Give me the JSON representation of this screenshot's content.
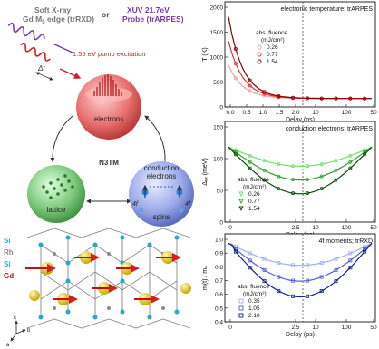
{
  "left": {
    "probe_soft": "Soft X-ray",
    "probe_soft2": "Gd M",
    "probe_soft2_sub": "5",
    "probe_soft3": " edge (trRXD)",
    "or": "or",
    "probe_xuv": "XUV 21.7eV",
    "probe_xuv2": "Probe (trARPES)",
    "delay": "Δt",
    "pump": "1.55 eV pump excitation",
    "model": "N3TM",
    "baths": {
      "electrons": "electrons",
      "lattice": "lattice",
      "conduction1": "conduction",
      "conduction2": "electrons",
      "spins": "spins",
      "f1": "4f",
      "f2": "4f"
    },
    "atoms": {
      "si1": "Si",
      "rh": "Rh",
      "si2": "Si",
      "gd": "Gd"
    },
    "axes": {
      "a": "a",
      "b": "b",
      "c": "c"
    },
    "colors": {
      "electrons": "#e06060",
      "lattice": "#4aa84a",
      "spins": "#4a7ad0",
      "pump": "#d02020",
      "probe": "#7a3aa8"
    }
  },
  "panels": [
    {
      "id": "electronic-temperature",
      "title": "electronic temperature; trARPES",
      "ylabel": "T (K)",
      "xlabel": "Delay (ps)",
      "yticks": [
        "0",
        "500",
        "1000",
        "1500",
        "2000"
      ],
      "xticks_lin": [
        "0.0",
        "0.5",
        "1.0",
        "1.5",
        "2.0"
      ],
      "xticks_log": [
        "10",
        "100",
        "50"
      ],
      "legend_title": "abs. fluence",
      "legend_unit": "(mJ/cm²)",
      "legend": [
        {
          "label": "0.26",
          "color": "#f0a0a0"
        },
        {
          "label": "0.77",
          "color": "#e03030"
        },
        {
          "label": "1.54",
          "color": "#8a0000"
        }
      ]
    },
    {
      "id": "conduction-electrons",
      "title": "conduction electrons; trARPES",
      "ylabel": "Δₑₓ (meV)",
      "xlabel": "Delay (ps)",
      "yticks": [
        "0",
        "50",
        "100",
        "150"
      ],
      "xticks_lin": [
        "0",
        "2.5"
      ],
      "xticks_log": [
        "10",
        "100",
        "50"
      ],
      "legend_title": "abs. fluence",
      "legend_unit": "(mJ/cm²)",
      "legend": [
        {
          "label": "0.26",
          "color": "#70e070"
        },
        {
          "label": "0.77",
          "color": "#30a030"
        },
        {
          "label": "1.54",
          "color": "#0a4a0a"
        }
      ]
    },
    {
      "id": "4f-moments",
      "title": "4f moments; trRXD",
      "ylabel": "m(t) / m₀",
      "xlabel": "Delay (ps)",
      "yticks": [
        "0.4",
        "0.5",
        "0.6",
        "0.7",
        "0.8",
        "0.9",
        "1.0"
      ],
      "xticks_lin": [
        "0",
        "2.5"
      ],
      "xticks_log": [
        "10",
        "100",
        "50"
      ],
      "legend_title": "abs. fluence",
      "legend_unit": "(mJ/cm²)",
      "legend": [
        {
          "label": "0.35",
          "color": "#a0b0f0"
        },
        {
          "label": "1.05",
          "color": "#5060d0"
        },
        {
          "label": "2.10",
          "color": "#10208a"
        }
      ]
    }
  ]
}
